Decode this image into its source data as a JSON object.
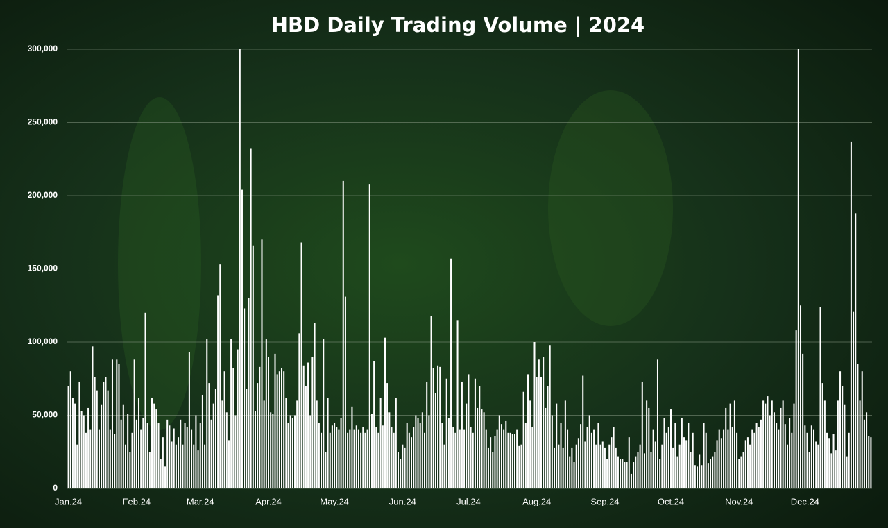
{
  "chart_data": {
    "type": "bar",
    "title": "HBD Daily Trading Volume | 2024",
    "categories": [
      "Jan.24",
      null,
      null,
      null,
      null,
      null,
      null,
      null,
      null,
      null,
      null,
      null,
      null,
      null,
      null,
      null,
      null,
      null,
      null,
      null,
      null,
      null,
      null,
      null,
      null,
      null,
      null,
      null,
      null,
      null,
      null,
      "Feb.24",
      null,
      null,
      null,
      null,
      null,
      null,
      null,
      null,
      null,
      null,
      null,
      null,
      null,
      null,
      null,
      null,
      null,
      null,
      null,
      null,
      null,
      null,
      null,
      null,
      null,
      null,
      null,
      null,
      "Mar.24",
      null,
      null,
      null,
      null,
      null,
      null,
      null,
      null,
      null,
      null,
      null,
      null,
      null,
      null,
      null,
      null,
      null,
      null,
      null,
      null,
      null,
      null,
      null,
      null,
      null,
      null,
      null,
      null,
      null,
      null,
      "Apr.24",
      null,
      null,
      null,
      null,
      null,
      null,
      null,
      null,
      null,
      null,
      null,
      null,
      null,
      null,
      null,
      null,
      null,
      null,
      null,
      null,
      null,
      null,
      null,
      null,
      null,
      null,
      null,
      null,
      null,
      "May.24",
      null,
      null,
      null,
      null,
      null,
      null,
      null,
      null,
      null,
      null,
      null,
      null,
      null,
      null,
      null,
      null,
      null,
      null,
      null,
      null,
      null,
      null,
      null,
      null,
      null,
      null,
      null,
      null,
      null,
      null,
      "Jun.24",
      null,
      null,
      null,
      null,
      null,
      null,
      null,
      null,
      null,
      null,
      null,
      null,
      null,
      null,
      null,
      null,
      null,
      null,
      null,
      null,
      null,
      null,
      null,
      null,
      null,
      null,
      null,
      null,
      null,
      "Jul.24",
      null,
      null,
      null,
      null,
      null,
      null,
      null,
      null,
      null,
      null,
      null,
      null,
      null,
      null,
      null,
      null,
      null,
      null,
      null,
      null,
      null,
      null,
      null,
      null,
      null,
      null,
      null,
      null,
      null,
      null,
      "Aug.24",
      null,
      null,
      null,
      null,
      null,
      null,
      null,
      null,
      null,
      null,
      null,
      null,
      null,
      null,
      null,
      null,
      null,
      null,
      null,
      null,
      null,
      null,
      null,
      null,
      null,
      null,
      null,
      null,
      null,
      null,
      "Sep.24",
      null,
      null,
      null,
      null,
      null,
      null,
      null,
      null,
      null,
      null,
      null,
      null,
      null,
      null,
      null,
      null,
      null,
      null,
      null,
      null,
      null,
      null,
      null,
      null,
      null,
      null,
      null,
      null,
      null,
      "Oct.24",
      null,
      null,
      null,
      null,
      null,
      null,
      null,
      null,
      null,
      null,
      null,
      null,
      null,
      null,
      null,
      null,
      null,
      null,
      null,
      null,
      null,
      null,
      null,
      null,
      null,
      null,
      null,
      null,
      null,
      null,
      "Nov.24",
      null,
      null,
      null,
      null,
      null,
      null,
      null,
      null,
      null,
      null,
      null,
      null,
      null,
      null,
      null,
      null,
      null,
      null,
      null,
      null,
      null,
      null,
      null,
      null,
      null,
      null,
      null,
      null,
      null,
      "Dec.24",
      null,
      null,
      null,
      null,
      null,
      null,
      null,
      null,
      null,
      null,
      null,
      null,
      null,
      null,
      null,
      null,
      null,
      null,
      null,
      null,
      null,
      null,
      null,
      null,
      null,
      null,
      null,
      null,
      null,
      null
    ],
    "values": [
      70000,
      80000,
      62000,
      58000,
      30000,
      73000,
      53000,
      50000,
      38000,
      55000,
      40000,
      97000,
      76000,
      67000,
      40000,
      57000,
      73000,
      76000,
      67000,
      40000,
      88000,
      37000,
      88000,
      85000,
      47000,
      57000,
      30000,
      51000,
      25000,
      38000,
      88000,
      47000,
      62000,
      40000,
      48000,
      120000,
      45000,
      25000,
      62000,
      58000,
      54000,
      45000,
      20000,
      35000,
      15000,
      47000,
      43000,
      32000,
      41000,
      30000,
      35000,
      47000,
      30000,
      45000,
      42000,
      93000,
      40000,
      30000,
      50000,
      26000,
      45000,
      64000,
      30000,
      102000,
      72000,
      47000,
      58000,
      68000,
      132000,
      153000,
      60000,
      80000,
      52000,
      33000,
      102000,
      82000,
      50000,
      95000,
      300000,
      204000,
      123000,
      68000,
      130000,
      232000,
      166000,
      53000,
      72000,
      83000,
      170000,
      60000,
      102000,
      90000,
      52000,
      51000,
      92000,
      78000,
      80000,
      82000,
      80000,
      62000,
      45000,
      50000,
      48000,
      50000,
      60000,
      106000,
      168000,
      84000,
      70000,
      86000,
      50000,
      90000,
      113000,
      60000,
      45000,
      38000,
      102000,
      25000,
      62000,
      38000,
      43000,
      45000,
      42000,
      40000,
      48000,
      210000,
      131000,
      38000,
      40000,
      56000,
      40000,
      43000,
      40000,
      38000,
      42000,
      38000,
      40000,
      208000,
      51000,
      87000,
      42000,
      38000,
      62000,
      43000,
      103000,
      72000,
      52000,
      42000,
      38000,
      62000,
      25000,
      20000,
      30000,
      28000,
      45000,
      38000,
      35000,
      42000,
      50000,
      48000,
      45000,
      52000,
      38000,
      73000,
      50000,
      118000,
      82000,
      65000,
      84000,
      83000,
      45000,
      30000,
      75000,
      48000,
      157000,
      42000,
      38000,
      115000,
      40000,
      73000,
      40000,
      58000,
      78000,
      42000,
      38000,
      75000,
      55000,
      70000,
      54000,
      52000,
      40000,
      28000,
      35000,
      25000,
      36000,
      40000,
      50000,
      44000,
      40000,
      46000,
      38000,
      38000,
      37000,
      37000,
      40000,
      29000,
      30000,
      66000,
      45000,
      78000,
      60000,
      42000,
      100000,
      76000,
      88000,
      76000,
      90000,
      55000,
      70000,
      98000,
      50000,
      28000,
      58000,
      30000,
      45000,
      28000,
      60000,
      40000,
      22000,
      28000,
      18000,
      30000,
      34000,
      44000,
      77000,
      32000,
      42000,
      50000,
      38000,
      40000,
      30000,
      45000,
      30000,
      32000,
      28000,
      20000,
      30000,
      35000,
      42000,
      28000,
      22000,
      20000,
      20000,
      18000,
      18000,
      35000,
      10000,
      18000,
      22000,
      25000,
      30000,
      73000,
      24000,
      60000,
      55000,
      25000,
      40000,
      32000,
      88000,
      20000,
      30000,
      48000,
      38000,
      42000,
      54000,
      28000,
      45000,
      22000,
      30000,
      48000,
      35000,
      33000,
      45000,
      25000,
      38000,
      16000,
      15000,
      23000,
      16000,
      45000,
      38000,
      17000,
      20000,
      22000,
      25000,
      33000,
      40000,
      34000,
      40000,
      55000,
      40000,
      58000,
      42000,
      60000,
      38000,
      20000,
      22000,
      25000,
      33000,
      35000,
      30000,
      40000,
      38000,
      45000,
      42000,
      47000,
      60000,
      58000,
      63000,
      50000,
      60000,
      52000,
      45000,
      40000,
      55000,
      60000,
      44000,
      30000,
      48000,
      38000,
      58000,
      108000,
      300000,
      125000,
      92000,
      43000,
      38000,
      25000,
      43000,
      40000,
      32000,
      30000,
      124000,
      72000,
      60000,
      38000,
      34000,
      24000,
      37000,
      26000,
      60000,
      80000,
      70000,
      57000,
      22000,
      38000,
      237000,
      121000,
      188000,
      85000,
      60000,
      80000,
      47000,
      52000,
      36000,
      35000
    ],
    "color": "#ffffff",
    "ylim": [
      0,
      300000
    ],
    "yticks": [
      0,
      {
        "value": 50000,
        "label": "50,000"
      },
      {
        "value": 100000,
        "label": "100,000"
      },
      {
        "value": 150000,
        "label": "150,000"
      },
      {
        "value": 200000,
        "label": "200,000"
      },
      {
        "value": 250000,
        "label": "250,000"
      },
      {
        "value": 300000,
        "label": "300,000"
      }
    ],
    "grid": true
  }
}
